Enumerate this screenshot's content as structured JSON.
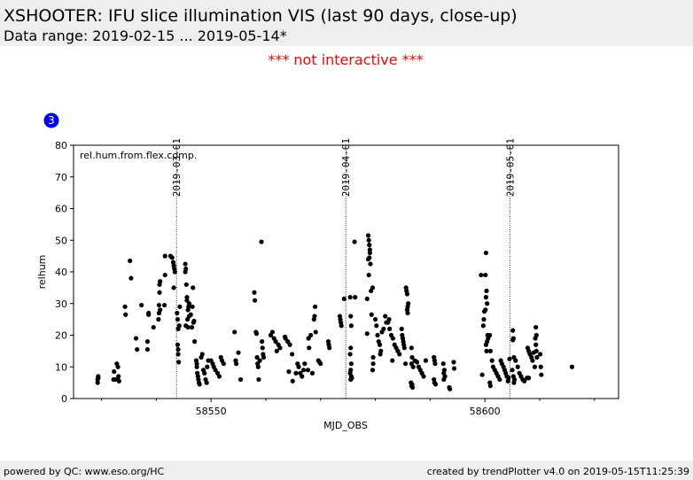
{
  "header": {
    "title": "XSHOOTER: IFU slice illumination VIS (last 90 days, close-up)",
    "subtitle": "Data range: 2019-02-15 ... 2019-05-14*"
  },
  "notice": "*** not interactive ***",
  "badge": 3,
  "footer": {
    "left": "powered by QC: www.eso.org/HC",
    "right": "created by trendPlotter v4.0 on 2019-05-15T11:25:39"
  },
  "chart_data": {
    "type": "scatter",
    "color": "#000000",
    "xlabel": "MJD_OBS",
    "ylabel": "relhum",
    "annotation": "rel.hum.from.flex.comp.",
    "xlim": [
      58524.9,
      58624.4
    ],
    "xticks": [
      58550,
      58600
    ],
    "xminorticks": [
      58530,
      58540,
      58560,
      58570,
      58580,
      58590,
      58610,
      58620
    ],
    "ylim": [
      0,
      80
    ],
    "yticks": [
      0,
      10,
      20,
      30,
      40,
      50,
      60,
      70,
      80
    ],
    "grid": false,
    "markers": [
      {
        "value": 58543.7,
        "label": "2019-03-01"
      },
      {
        "value": 58574.6,
        "label": "2019-04-01"
      },
      {
        "value": 58604.6,
        "label": "2019-05-01"
      }
    ],
    "x": [
      58529.3,
      58529.3,
      58529.4,
      58529.4,
      58532.2,
      58532.3,
      58532.5,
      58532.8,
      58533.0,
      58533.0,
      58533.1,
      58533.2,
      58534.3,
      58534.4,
      58535.2,
      58535.4,
      58536.3,
      58536.5,
      58537.3,
      58538.4,
      58538.4,
      58538.6,
      58538.6,
      58539.5,
      58540.4,
      58540.5,
      58540.5,
      58540.6,
      58540.6,
      58540.7,
      58540.7,
      58541.6,
      58541.6,
      58541.5,
      58542.6,
      58542.9,
      58543.1,
      58543.2,
      58543.3,
      58543.4,
      58543.2,
      58543.8,
      58543.9,
      58544.0,
      58543.9,
      58544.0,
      58544.0,
      58544.1,
      58544.2,
      58544.3,
      58545.3,
      58545.4,
      58545.3,
      58545.5,
      58545.6,
      58545.6,
      58545.4,
      58545.7,
      58545.8,
      58545.9,
      58546.0,
      58546.0,
      58545.8,
      58546.7,
      58546.8,
      58547.0,
      58546.9,
      58546.5,
      58546.3,
      58546.6,
      58547.3,
      58547.4,
      58547.4,
      58547.5,
      58547.6,
      58547.7,
      58547.8,
      58547.9,
      58548.2,
      58548.4,
      58548.6,
      58548.8,
      58549.0,
      58549.2,
      58549.3,
      58549.5,
      58550.0,
      58550.3,
      58550.5,
      58550.8,
      58551.2,
      58551.5,
      58551.8,
      58552.0,
      58552.3,
      58554.3,
      58554.5,
      58554.6,
      58555.0,
      58555.4,
      58557.9,
      58558.0,
      58558.2,
      58558.3,
      58558.4,
      58558.5,
      58558.6,
      58558.7,
      58558.9,
      58559.2,
      58559.3,
      58559.4,
      58559.5,
      58559.6,
      58560.9,
      58561.2,
      58561.5,
      58561.8,
      58562.0,
      58562.3,
      58562.6,
      58563.6,
      58564.0,
      58564.4,
      58564.8,
      58563.5,
      58564.2,
      58564.9,
      58565.5,
      58565.8,
      58566.0,
      58566.3,
      58566.6,
      58566.9,
      58567.1,
      58567.8,
      58567.9,
      58568.2,
      58568.8,
      58568.9,
      58569.0,
      58569.1,
      58567.7,
      58568.5,
      58569.6,
      58569.8,
      58570.0,
      58571.4,
      58571.5,
      58571.6,
      58573.5,
      58573.6,
      58573.7,
      58573.8,
      58574.3,
      58575.4,
      58575.5,
      58575.6,
      58575.5,
      58575.4,
      58575.6,
      58575.5,
      58575.4,
      58575.6,
      58575.7,
      58575.5,
      58576.2,
      58576.3,
      58578.7,
      58578.8,
      58578.9,
      58579.0,
      58579.0,
      58578.7,
      58578.9,
      58579.1,
      58578.8,
      58579.2,
      58579.5,
      58578.5,
      58579.3,
      58578.5,
      58580.0,
      58580.2,
      58580.4,
      58580.6,
      58580.8,
      58581.0,
      58579.6,
      58579.6,
      58579.5,
      58580.9,
      58581.2,
      58581.5,
      58581.8,
      58582.0,
      58582.3,
      58582.6,
      58582.9,
      58583.2,
      58583.5,
      58583.8,
      58584.1,
      58584.4,
      58583.1,
      58582.5,
      58584.8,
      58584.9,
      58585.0,
      58585.1,
      58585.2,
      58585.3,
      58585.5,
      58585.6,
      58585.7,
      58585.8,
      58586.0,
      58585.9,
      58585.8,
      58585.9,
      58586.6,
      58586.7,
      58586.6,
      58586.9,
      58586.5,
      58586.6,
      58586.8,
      58586.7,
      58587.2,
      58587.6,
      58587.9,
      58588.2,
      58588.5,
      58588.8,
      58589.2,
      58590.7,
      58590.8,
      58590.9,
      58590.7,
      58590.8,
      58591.0,
      58592.4,
      58592.6,
      58592.5,
      58592.7,
      58592.5,
      58593.5,
      58593.6,
      58594.3,
      58594.4,
      58599.3,
      58600.1,
      58600.2,
      58600.3,
      58600.2,
      58600.4,
      58600.1,
      58599.9,
      58599.8,
      58599.7,
      58600.5,
      58600.6,
      58600.4,
      58600.2,
      58600.3,
      58599.5,
      58600.9,
      58601.0,
      58601.3,
      58601.5,
      58601.8,
      58602.1,
      58602.4,
      58602.7,
      58600.9,
      58601.0,
      58602.9,
      58603.1,
      58603.4,
      58603.6,
      58603.8,
      58604.0,
      58604.3,
      58604.2,
      58604.5,
      58605.1,
      58605.2,
      58605.1,
      58605.3,
      58605.0,
      58605.2,
      58605.4,
      58605.3,
      58605.6,
      58606.0,
      58606.3,
      58606.6,
      58606.9,
      58607.2,
      58607.7,
      58607.8,
      58608.0,
      58608.2,
      58608.5,
      58608.7,
      58608.9,
      58609.1,
      58608.0,
      58609.3,
      58609.4,
      58609.2,
      58609.3,
      58609.4,
      58609.5,
      58610.1,
      58610.2,
      58610.3,
      58615.9
    ],
    "values": [
      5,
      6,
      7,
      6.5,
      6,
      8.5,
      6,
      11,
      10,
      6,
      7,
      5.5,
      29,
      26.5,
      43.5,
      38,
      19,
      15.5,
      29.5,
      18,
      15.5,
      27,
      26.5,
      22.5,
      25,
      27,
      29.5,
      33.5,
      36,
      37,
      28,
      45,
      39,
      29.5,
      45,
      44.5,
      43,
      42,
      41,
      40,
      35,
      27,
      25,
      22,
      17,
      15.5,
      14,
      11.5,
      23,
      29,
      42.5,
      41,
      40,
      36,
      32,
      31,
      23,
      25,
      28,
      29,
      30,
      26,
      22.5,
      35,
      24,
      18,
      24.5,
      22.5,
      26.5,
      29,
      12,
      11,
      10,
      8,
      7,
      6,
      5,
      4.5,
      13,
      14,
      9,
      8,
      6,
      5,
      10,
      12,
      12,
      11,
      10,
      9,
      8,
      7,
      13,
      12,
      11,
      21,
      12,
      11,
      14.5,
      6,
      33.5,
      31,
      21,
      20.5,
      13,
      11,
      10,
      6,
      12,
      49.5,
      18,
      16,
      14,
      13,
      20,
      21,
      19,
      18,
      15,
      17,
      16,
      19,
      18,
      17,
      14,
      19.5,
      8.5,
      5.5,
      8,
      11,
      10,
      8,
      7,
      9,
      11,
      19,
      16,
      20,
      25,
      26,
      29,
      21,
      9,
      8,
      12,
      11.5,
      11,
      18,
      17,
      16,
      26,
      25,
      24,
      23,
      31.5,
      32,
      26,
      23,
      16,
      14,
      11,
      9,
      8,
      7,
      6.5,
      6,
      49.5,
      32,
      51.5,
      50,
      48.5,
      47,
      46,
      44,
      44.5,
      42.5,
      39,
      34,
      35,
      31.5,
      26.5,
      20.5,
      25,
      23,
      20,
      18,
      17,
      15,
      13,
      11,
      9,
      14,
      21,
      22,
      26,
      24,
      24,
      22,
      20,
      19,
      17,
      16,
      15,
      14,
      12,
      25,
      22,
      20,
      19,
      18,
      17,
      16,
      11,
      35,
      34,
      33,
      30,
      29,
      28,
      27,
      16,
      13,
      11,
      10,
      5,
      4,
      3.5,
      4.5,
      12,
      11.5,
      10,
      9,
      8,
      7,
      12,
      13,
      12,
      11,
      6,
      5,
      4.5,
      11,
      9,
      8,
      7,
      6,
      3.5,
      3,
      11.5,
      9.5,
      39,
      39,
      46,
      34,
      32,
      30,
      28,
      27.5,
      25,
      23,
      20,
      19,
      18,
      17,
      15,
      7.5,
      20,
      15,
      12,
      10,
      9,
      8,
      7,
      6,
      5,
      4,
      12,
      11,
      10,
      9,
      8,
      7,
      6.5,
      5.5,
      12.5,
      21.5,
      19,
      18.5,
      13,
      9,
      7,
      6,
      5,
      12,
      10,
      8,
      7,
      6,
      5.5,
      6.5,
      16,
      15,
      14,
      13,
      12,
      14.5,
      10,
      6.5,
      22.5,
      20,
      19,
      17,
      15,
      13,
      14,
      10,
      7.5,
      10
    ]
  }
}
